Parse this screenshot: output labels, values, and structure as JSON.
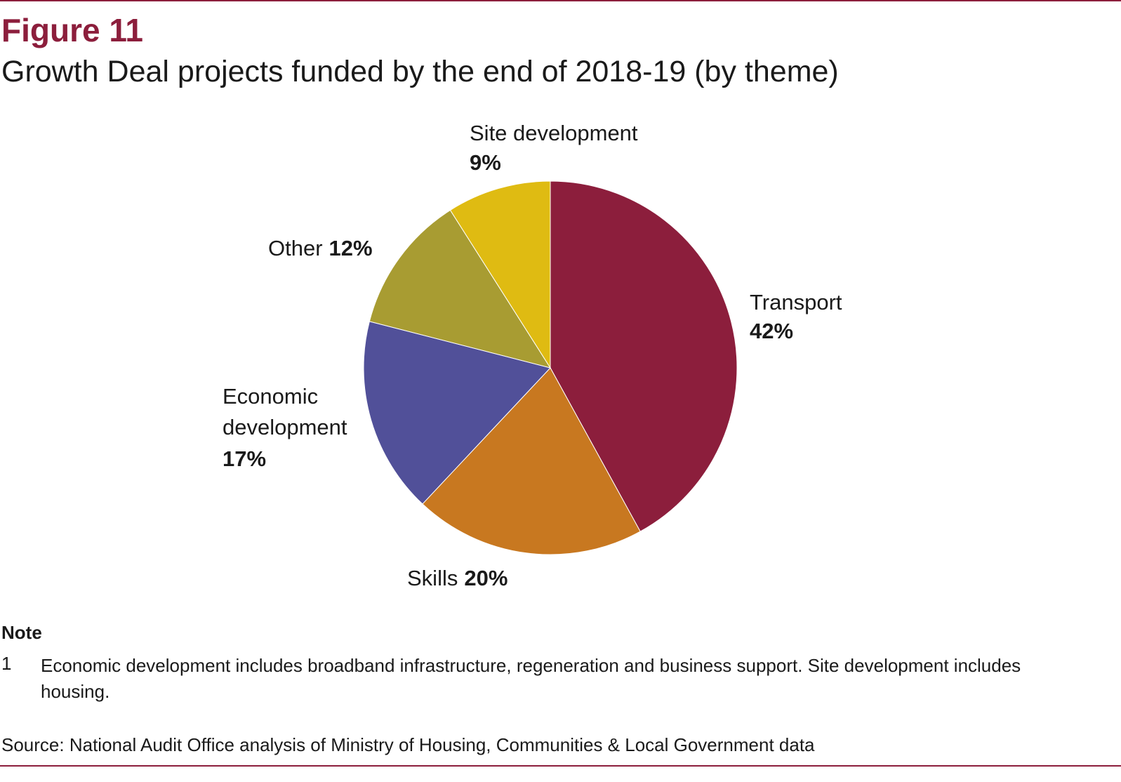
{
  "figure": {
    "label": "Figure 11",
    "title": "Growth Deal projects funded by the end of 2018-19 (by theme)"
  },
  "chart_data": {
    "type": "pie",
    "slices": [
      {
        "name": "Transport",
        "value": 42,
        "label": "Transport",
        "pct_label": "42%",
        "color": "#8c1e3c"
      },
      {
        "name": "Skills",
        "value": 20,
        "label": "Skills",
        "pct_label": "20%",
        "color": "#c87820"
      },
      {
        "name": "Economic development",
        "value": 17,
        "label_lines": [
          "Economic",
          "development"
        ],
        "pct_label": "17%",
        "color": "#515099"
      },
      {
        "name": "Other",
        "value": 12,
        "label": "Other",
        "pct_label": "12%",
        "color": "#a89c32"
      },
      {
        "name": "Site development",
        "value": 9,
        "label": "Site development",
        "pct_label": "9%",
        "color": "#dfbb12"
      }
    ]
  },
  "note": {
    "heading": "Note",
    "items": [
      {
        "number": "1",
        "text": "Economic development includes broadband infrastructure, regeneration and business support. Site development includes housing."
      }
    ]
  },
  "source": "Source: National Audit Office analysis of Ministry of Housing, Communities & Local Government data"
}
